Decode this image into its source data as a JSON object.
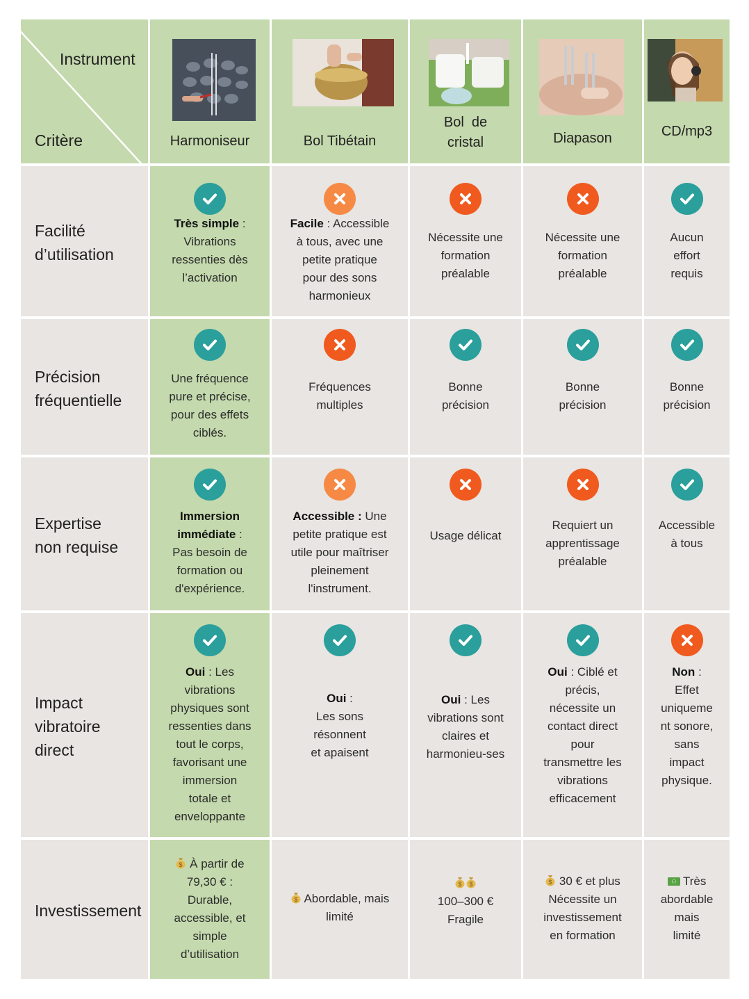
{
  "header": {
    "instrument_label": "Instrument",
    "critere_label": "Critère",
    "columns": [
      "Harmoniseur",
      "Bol Tibétain",
      "Bol  de\ncristal",
      "Diapason",
      "CD/mp3"
    ]
  },
  "rows": [
    {
      "label": "Facilité\nd’utilisation",
      "cells": [
        {
          "icon": "check-icon",
          "bold": "Très simple",
          "text": " :\nVibrations\nressenties dès\nl’activation"
        },
        {
          "icon": "cross-light-icon",
          "bold": "Facile",
          "text": " : Accessible\nà tous, avec une\npetite pratique\npour des sons\nharmonieux"
        },
        {
          "icon": "cross-icon",
          "bold": "",
          "text": "Nécessite une\nformation\npréalable"
        },
        {
          "icon": "cross-icon",
          "bold": "",
          "text": "Nécessite une\nformation\npréalable"
        },
        {
          "icon": "check-icon",
          "bold": "",
          "text": "Aucun\neffort\nrequis"
        }
      ]
    },
    {
      "label": "Précision\nfréquentielle",
      "cells": [
        {
          "icon": "check-icon",
          "bold": "",
          "text": "Une fréquence\npure et précise,\npour des effets\nciblés."
        },
        {
          "icon": "cross-icon",
          "bold": "",
          "text": "Fréquences\nmultiples"
        },
        {
          "icon": "check-icon",
          "bold": "",
          "text": "Bonne\nprécision"
        },
        {
          "icon": "check-icon",
          "bold": "",
          "text": "Bonne\nprécision"
        },
        {
          "icon": "check-icon",
          "bold": "",
          "text": "Bonne\nprécision"
        }
      ]
    },
    {
      "label": "Expertise\nnon requise",
      "cells": [
        {
          "icon": "check-icon",
          "bold": "Immersion\nimmédiate",
          "text": " :\nPas besoin de\nformation ou\nd'expérience."
        },
        {
          "icon": "cross-light-icon",
          "bold": "Accessible :",
          "text": " Une\npetite pratique est\nutile pour maîtriser\npleinement\nl'instrument."
        },
        {
          "icon": "cross-icon",
          "bold": "",
          "text": "Usage délicat"
        },
        {
          "icon": "cross-icon",
          "bold": "",
          "text": "Requiert un\napprentissage\npréalable"
        },
        {
          "icon": "check-icon",
          "bold": "",
          "text": "Accessible\nà tous"
        }
      ]
    },
    {
      "label": "Impact\nvibratoire\ndirect",
      "cells": [
        {
          "icon": "check-icon",
          "bold": "Oui",
          "text": " : Les\nvibrations\nphysiques sont\nressenties dans\ntout le corps,\nfavorisant une\nimmersion\ntotale et\nenveloppante"
        },
        {
          "icon": "check-icon",
          "bold": "Oui",
          "text": " :\nLes sons\nrésonnent\net apaisent"
        },
        {
          "icon": "check-icon",
          "bold": "Oui",
          "text": " : Les\nvibrations sont\nclaires et\nharmonieu-ses"
        },
        {
          "icon": "check-icon",
          "bold": "Oui",
          "text": " : Ciblé et\nprécis,\nnécessite un\ncontact direct\npour\ntransmettre les\nvibrations\nefficacement"
        },
        {
          "icon": "cross-icon",
          "bold": "Non",
          "text": " :\nEffet\nuniqueme\nnt sonore,\nsans\nimpact\nphysique."
        }
      ]
    },
    {
      "label": "Investissement",
      "cells": [
        {
          "icon": "money-bag-icon",
          "bold": "",
          "text": " À partir de\n79,30 € :\nDurable,\naccessible, et\nsimple\nd’utilisation"
        },
        {
          "icon": "money-bag-icon",
          "bold": "",
          "text": " Abordable, mais\nlimité"
        },
        {
          "icon": "two-money-bags-icon",
          "bold": "",
          "text": "100–300 €\nFragile"
        },
        {
          "icon": "money-bag-icon",
          "bold": "",
          "text": " 30 € et plus\nNécessite un\ninvestissement\nen formation"
        },
        {
          "icon": "banknote-icon",
          "bold": "",
          "text": " Très\nabordable\nmais\nlimité"
        }
      ]
    }
  ],
  "colors": {
    "green": "#c4d9ad",
    "grey": "#e8e5e2",
    "check": "#2a9f9c",
    "cross": "#f05a1e",
    "cross_light": "#f68a45"
  }
}
